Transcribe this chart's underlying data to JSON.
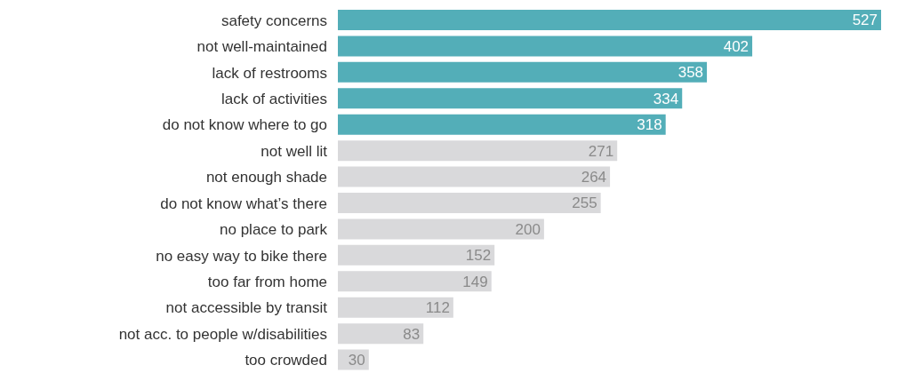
{
  "chart_data": {
    "type": "bar",
    "orientation": "horizontal",
    "data_labels": true,
    "categories": [
      "safety concerns",
      "not well-maintained",
      "lack of restrooms",
      "lack of activities",
      "do not know where to go",
      "not well lit",
      "not enough shade",
      "do not know what’s there",
      "no place to park",
      "no easy way to bike there",
      "too far from home",
      "not accessible by transit",
      "not acc. to people w/disabilities",
      "too crowded"
    ],
    "values": [
      527,
      402,
      358,
      334,
      318,
      271,
      264,
      255,
      200,
      152,
      149,
      112,
      83,
      30
    ],
    "colors": [
      "#53aeb8",
      "#53aeb8",
      "#53aeb8",
      "#53aeb8",
      "#53aeb8",
      "#d9d9db",
      "#d9d9db",
      "#d9d9db",
      "#d9d9db",
      "#d9d9db",
      "#d9d9db",
      "#d9d9db",
      "#d9d9db",
      "#d9d9db"
    ]
  }
}
